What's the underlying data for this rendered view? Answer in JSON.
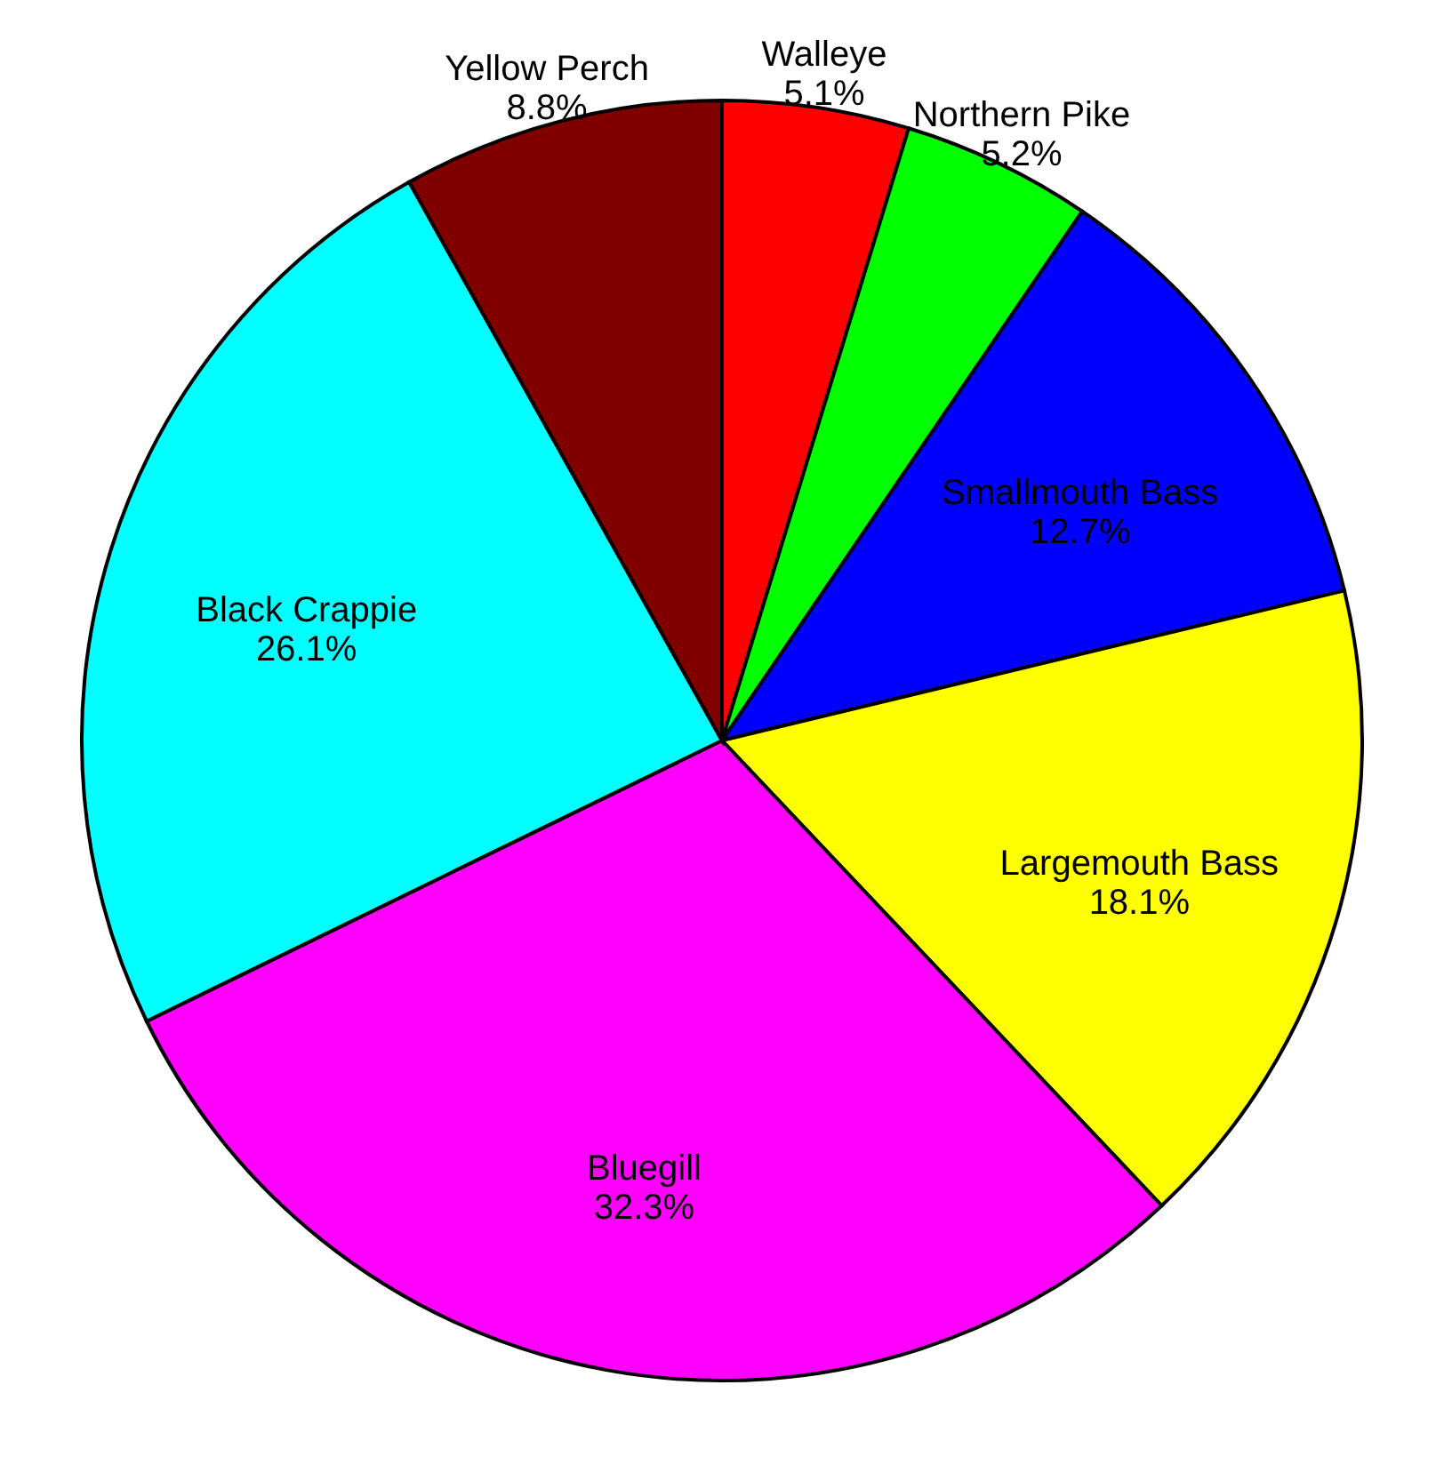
{
  "chart_data": {
    "type": "pie",
    "categories": [
      "Walleye",
      "Northern Pike",
      "Smallmouth Bass",
      "Largemouth Bass",
      "Bluegill",
      "Black Crappie",
      "Yellow Perch"
    ],
    "values": [
      5.1,
      5.2,
      12.7,
      18.1,
      32.3,
      26.1,
      8.8
    ],
    "value_labels": [
      "5.1%",
      "5.2%",
      "12.7%",
      "18.1%",
      "32.3%",
      "26.1%",
      "8.8%"
    ],
    "colors": [
      "#ff0000",
      "#00ff00",
      "#0000ff",
      "#ffff00",
      "#ff00ff",
      "#00ffff",
      "#800000"
    ]
  }
}
